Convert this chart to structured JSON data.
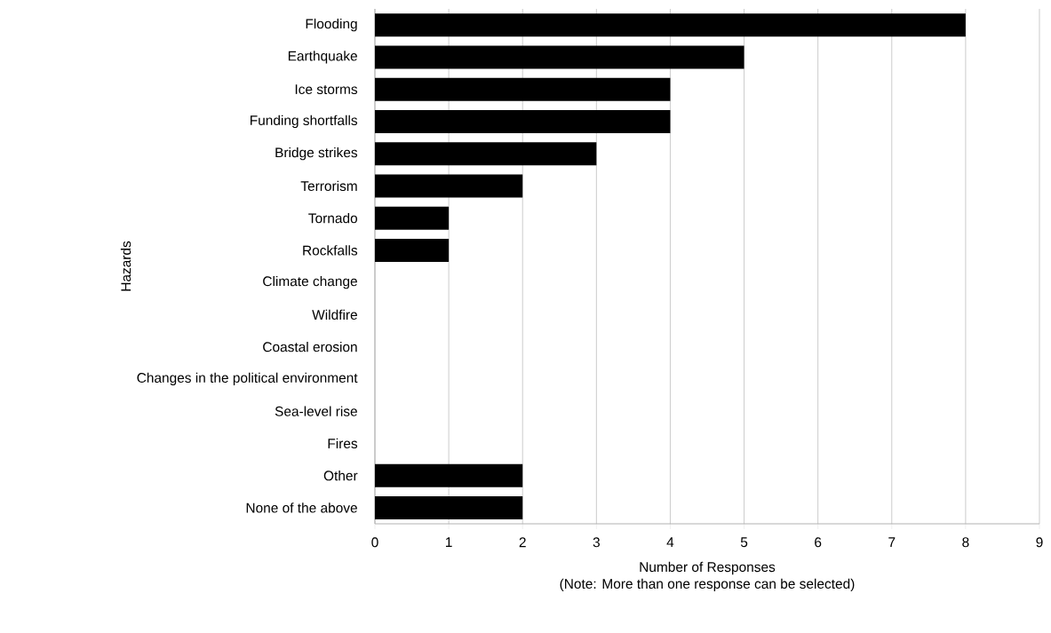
{
  "chart_data": {
    "type": "bar",
    "orientation": "horizontal",
    "xlabel": "Number of Responses",
    "ylabel": "Hazards",
    "annotations": [
      "(Note: More than one response can be selected)"
    ],
    "categories": [
      "Flooding",
      "Earthquake",
      "Ice storms",
      "Funding shortfalls",
      "Bridge strikes",
      "Terrorism",
      "Tornado",
      "Rockfalls",
      "Climate change",
      "Wildfire",
      "Coastal erosion",
      "Changes in the political environment",
      "Sea-level rise",
      "Fires",
      "Other",
      "None of the above"
    ],
    "values": [
      8,
      5,
      4,
      4,
      3,
      2,
      1,
      1,
      0,
      0,
      0,
      0,
      0,
      0,
      2,
      2
    ],
    "color": "#000000",
    "xlim": [
      0,
      9
    ],
    "xticks": [
      0,
      1,
      2,
      3,
      4,
      5,
      6,
      7,
      8,
      9
    ],
    "grid": "x"
  }
}
